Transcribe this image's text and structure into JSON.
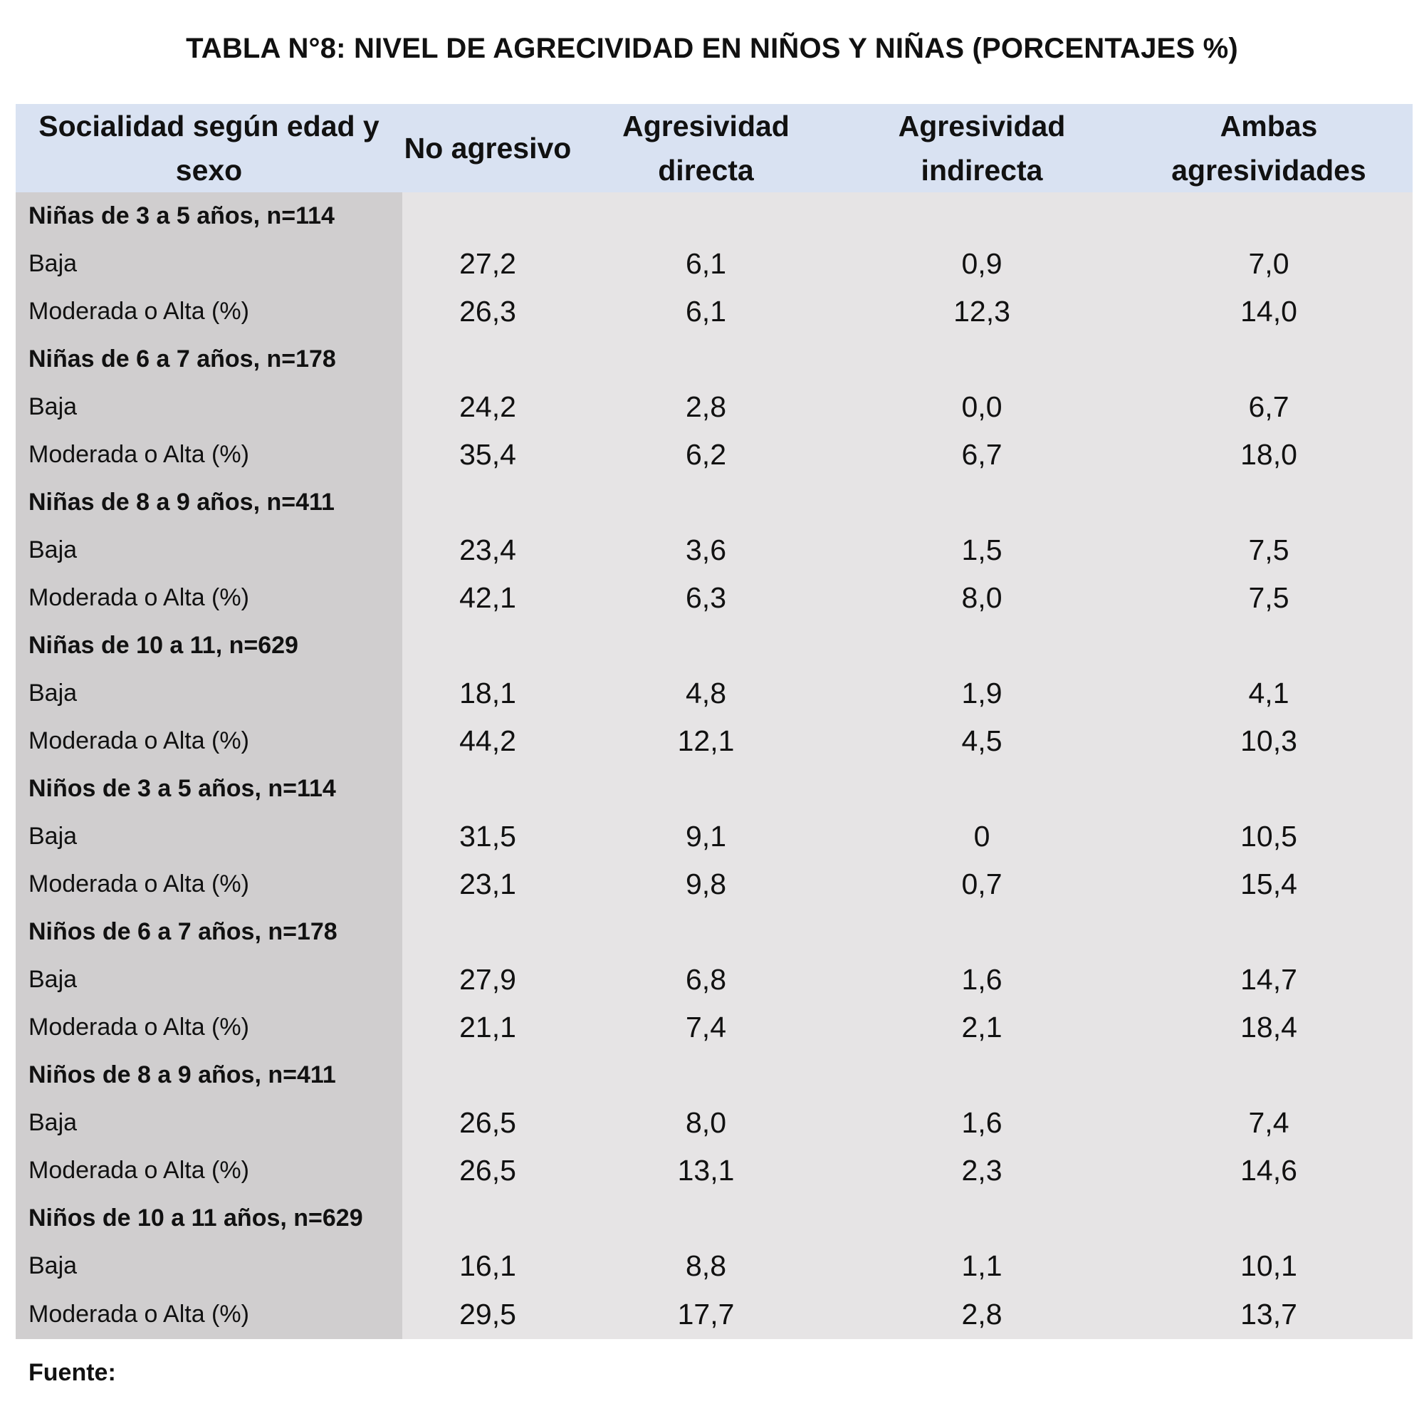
{
  "title": "TABLA N°8: NIVEL DE AGRECIVIDAD EN NIÑOS Y NIÑAS (PORCENTAJES %)",
  "headers": [
    "Socialidad según edad y sexo",
    "No agresivo",
    "Agresividad directa",
    "Agresividad indirecta",
    "Ambas agresividades"
  ],
  "groups": [
    {
      "label": "Niñas de 3 a 5 años, n=114",
      "rows": [
        {
          "label": "Baja",
          "values": [
            "27,2",
            "6,1",
            "0,9",
            "7,0"
          ]
        },
        {
          "label": "Moderada o Alta (%)",
          "values": [
            "26,3",
            "6,1",
            "12,3",
            "14,0"
          ]
        }
      ]
    },
    {
      "label": "Niñas de 6 a 7 años, n=178",
      "rows": [
        {
          "label": "Baja",
          "values": [
            "24,2",
            "2,8",
            "0,0",
            "6,7"
          ]
        },
        {
          "label": "Moderada o Alta (%)",
          "values": [
            "35,4",
            "6,2",
            "6,7",
            "18,0"
          ]
        }
      ]
    },
    {
      "label": "Niñas de 8 a 9 años, n=411",
      "rows": [
        {
          "label": "Baja",
          "values": [
            "23,4",
            "3,6",
            "1,5",
            "7,5"
          ]
        },
        {
          "label": "Moderada o Alta (%)",
          "values": [
            "42,1",
            "6,3",
            "8,0",
            "7,5"
          ]
        }
      ]
    },
    {
      "label": "Niñas de 10 a 11, n=629",
      "rows": [
        {
          "label": "Baja",
          "values": [
            "18,1",
            "4,8",
            "1,9",
            "4,1"
          ]
        },
        {
          "label": "Moderada o Alta (%)",
          "values": [
            "44,2",
            "12,1",
            "4,5",
            "10,3"
          ]
        }
      ]
    },
    {
      "label": "Niños de 3 a 5 años, n=114",
      "rows": [
        {
          "label": "Baja",
          "values": [
            "31,5",
            "9,1",
            "0",
            "10,5"
          ]
        },
        {
          "label": "Moderada o Alta (%)",
          "values": [
            "23,1",
            "9,8",
            "0,7",
            "15,4"
          ]
        }
      ]
    },
    {
      "label": "Niños de 6 a 7 años, n=178",
      "rows": [
        {
          "label": "Baja",
          "values": [
            "27,9",
            "6,8",
            "1,6",
            "14,7"
          ]
        },
        {
          "label": "Moderada o Alta (%)",
          "values": [
            "21,1",
            "7,4",
            "2,1",
            "18,4"
          ]
        }
      ]
    },
    {
      "label": "Niños de 8 a 9 años, n=411",
      "rows": [
        {
          "label": "Baja",
          "values": [
            "26,5",
            "8,0",
            "1,6",
            "7,4"
          ]
        },
        {
          "label": "Moderada o Alta (%)",
          "values": [
            "26,5",
            "13,1",
            "2,3",
            "14,6"
          ]
        }
      ]
    },
    {
      "label": "Niños de 10 a 11 años, n=629",
      "rows": [
        {
          "label": "Baja",
          "values": [
            "16,1",
            "8,8",
            "1,1",
            "10,1"
          ]
        },
        {
          "label": "Moderada o Alta (%)",
          "values": [
            "29,5",
            "17,7",
            "2,8",
            "13,7"
          ]
        }
      ]
    }
  ],
  "source": "Fuente:",
  "colors": {
    "header_bg": "#d9e2f2",
    "label_col_bg": "#d0cecf",
    "cell_bg": "#e6e4e5"
  }
}
